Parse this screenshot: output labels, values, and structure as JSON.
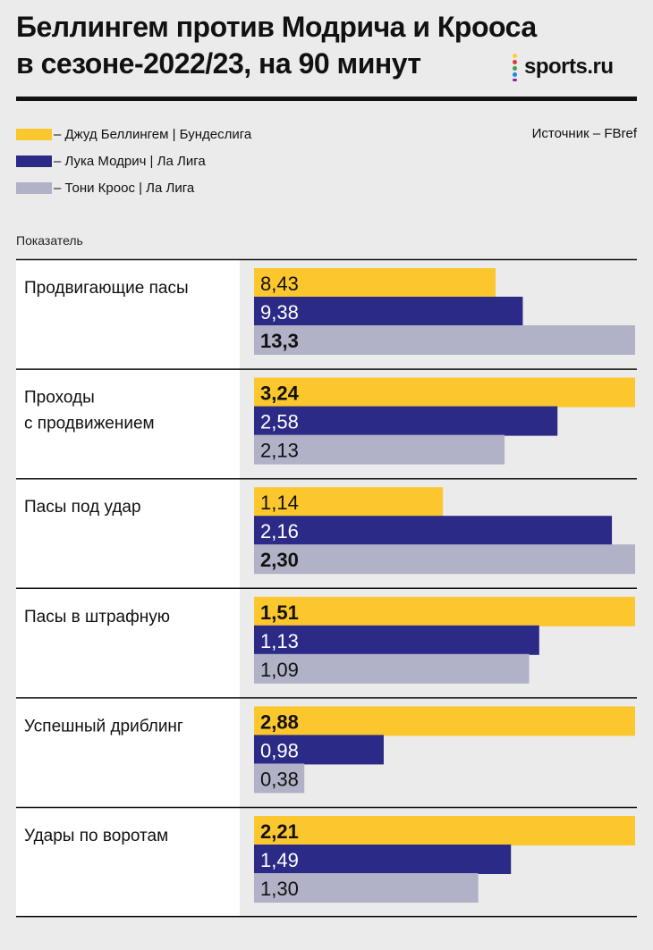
{
  "header": {
    "title_line1": "Беллингем против Модрича и Крооса",
    "title_line2": "в сезоне-2022/23, на 90 минут",
    "logo_text": "sports.ru",
    "logo_dot_colors": [
      "#ffcd29",
      "#e53935",
      "#43a047",
      "#1e88e5",
      "#8e24aa"
    ]
  },
  "legend": {
    "items": [
      {
        "label": "– Джуд Беллингем | Бундеслига",
        "color": "#fcc72d"
      },
      {
        "label": "– Лука Модрич | Ла Лига",
        "color": "#2b2a86"
      },
      {
        "label": "– Тони Кроос | Ла Лига",
        "color": "#b1b1c7"
      }
    ]
  },
  "source": "Источник – FBref",
  "column_header": "Показатель",
  "chart_data": {
    "type": "bar",
    "orientation": "horizontal",
    "title": "Беллингем против Модрича и Крооса в сезоне-2022/23, на 90 минут",
    "series": [
      {
        "name": "Джуд Беллингем | Бундеслига",
        "color": "#fcc72d",
        "label_color": "#111111"
      },
      {
        "name": "Лука Модрич | Ла Лига",
        "color": "#2b2a86",
        "label_color": "#ffffff"
      },
      {
        "name": "Тони Кроос | Ла Лига",
        "color": "#b1b1c7",
        "label_color": "#111111"
      }
    ],
    "categories": [
      {
        "label_lines": [
          "Продвигающие пасы"
        ],
        "values": [
          8.43,
          9.38,
          13.3
        ],
        "labels": [
          "8,43",
          "9,38",
          "13,3"
        ],
        "max": 13.3,
        "best_index": 2
      },
      {
        "label_lines": [
          "Проходы",
          "с продвижением"
        ],
        "values": [
          3.24,
          2.58,
          2.13
        ],
        "labels": [
          "3,24",
          "2,58",
          "2,13"
        ],
        "max": 3.24,
        "best_index": 0
      },
      {
        "label_lines": [
          "Пасы под удар"
        ],
        "values": [
          1.14,
          2.16,
          2.3
        ],
        "labels": [
          "1,14",
          "2,16",
          "2,30"
        ],
        "max": 2.3,
        "best_index": 2
      },
      {
        "label_lines": [
          "Пасы в штрафную"
        ],
        "values": [
          1.51,
          1.13,
          1.09
        ],
        "labels": [
          "1,51",
          "1,13",
          "1,09"
        ],
        "max": 1.51,
        "best_index": 0
      },
      {
        "label_lines": [
          "Успешный дриблинг"
        ],
        "values": [
          2.88,
          0.98,
          0.38
        ],
        "labels": [
          "2,88",
          "0,98",
          "0,38"
        ],
        "max": 2.88,
        "best_index": 0
      },
      {
        "label_lines": [
          "Удары по воротам"
        ],
        "values": [
          2.21,
          1.49,
          1.3
        ],
        "labels": [
          "2,21",
          "1,49",
          "1,30"
        ],
        "max": 2.21,
        "best_index": 0
      }
    ]
  }
}
